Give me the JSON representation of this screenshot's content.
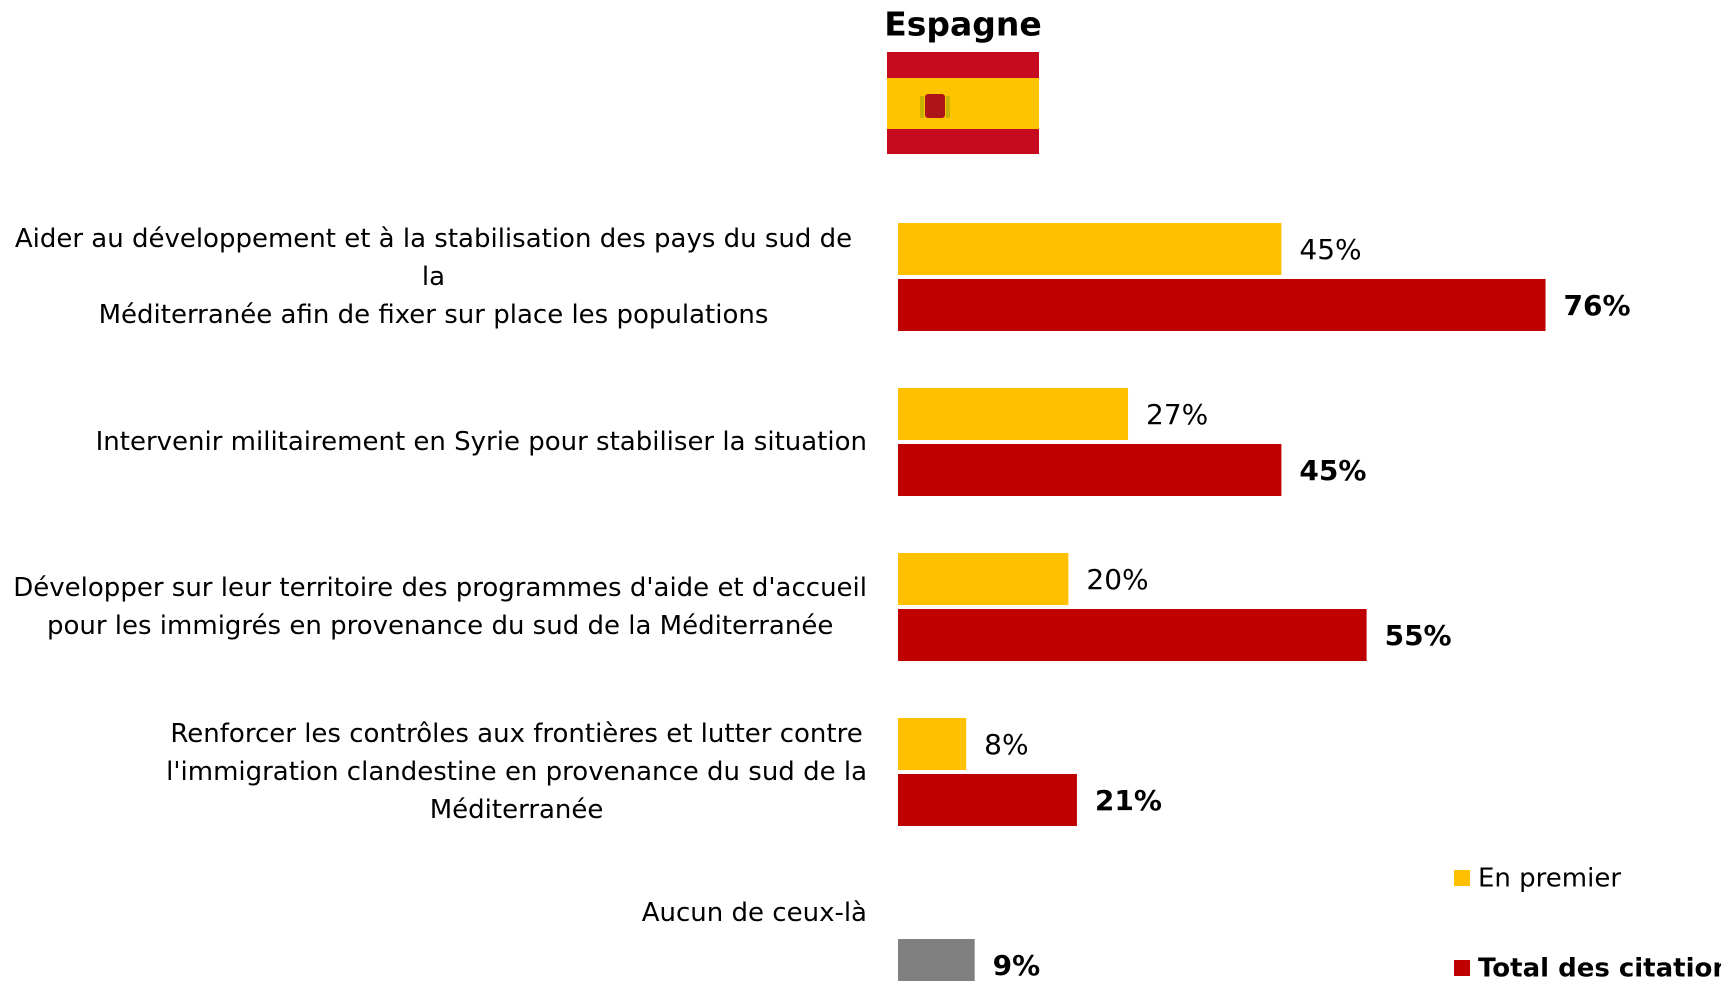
{
  "chart_data": {
    "type": "hbar",
    "title": "Espagne",
    "categories": [
      "Aider au développement et à la stabilisation des pays du sud de la\nMéditerranée afin de fixer sur place les populations",
      "Intervenir militairement en  Syrie pour stabiliser la situation",
      "Développer sur leur territoire des programmes d'aide et d'accueil\npour les immigrés en provenance du sud de la Méditerranée",
      "Renforcer les contrôles aux frontières et lutter contre\nl'immigration clandestine en provenance du sud de la\nMéditerranée",
      "Aucun de ceux-là"
    ],
    "series": [
      {
        "name": "En premier",
        "color": "#ffc000",
        "bold": false,
        "values": [
          45,
          27,
          20,
          8,
          null
        ],
        "value_labels": [
          "45%",
          "27%",
          "20%",
          "8%",
          null
        ]
      },
      {
        "name": "Total des citations",
        "color": "#c00000",
        "bold": true,
        "colors": [
          "#c00000",
          "#c00000",
          "#c00000",
          "#c00000",
          "#808080"
        ],
        "values": [
          76,
          45,
          55,
          21,
          9
        ],
        "value_labels": [
          "76%",
          "45%",
          "55%",
          "21%",
          "9%"
        ]
      }
    ],
    "xlim": [
      0,
      100
    ],
    "legend": "bottom-right"
  }
}
